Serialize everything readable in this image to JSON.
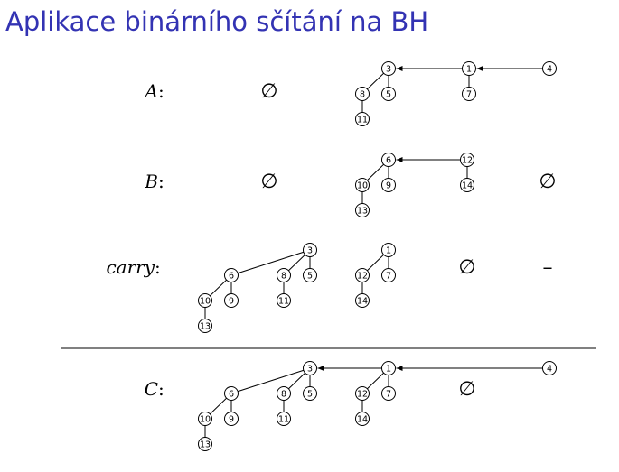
{
  "title": "Aplikace binárního sčítání na BH",
  "empty_symbol": "∅",
  "dash_symbol": "–",
  "rows": [
    {
      "label": "A",
      "colon": ":",
      "cells": [
        {
          "type": "empty"
        },
        {
          "type": "tree",
          "root": {
            "key": "3",
            "children": [
              {
                "key": "8",
                "children": [
                  {
                    "key": "11",
                    "children": []
                  }
                ]
              },
              {
                "key": "5",
                "children": []
              }
            ]
          }
        },
        {
          "type": "tree",
          "root": {
            "key": "1",
            "children": [
              {
                "key": "7",
                "children": []
              }
            ]
          }
        },
        {
          "type": "tree",
          "root": {
            "key": "4",
            "children": []
          }
        }
      ]
    },
    {
      "label": "B",
      "colon": ":",
      "cells": [
        {
          "type": "empty"
        },
        {
          "type": "tree",
          "root": {
            "key": "6",
            "children": [
              {
                "key": "10",
                "children": [
                  {
                    "key": "13",
                    "children": []
                  }
                ]
              },
              {
                "key": "9",
                "children": []
              }
            ]
          }
        },
        {
          "type": "tree",
          "root": {
            "key": "12",
            "children": [
              {
                "key": "14",
                "children": []
              }
            ]
          }
        },
        {
          "type": "empty"
        }
      ]
    },
    {
      "label": "carry",
      "colon": ":",
      "cells": [
        {
          "type": "tree",
          "root": {
            "key": "3",
            "children": [
              {
                "key": "6",
                "children": [
                  {
                    "key": "10",
                    "children": [
                      {
                        "key": "13",
                        "children": []
                      }
                    ]
                  },
                  {
                    "key": "9",
                    "children": []
                  }
                ]
              },
              {
                "key": "8",
                "children": [
                  {
                    "key": "11",
                    "children": []
                  }
                ]
              },
              {
                "key": "5",
                "children": []
              }
            ]
          }
        },
        {
          "type": "tree",
          "root": {
            "key": "1",
            "children": [
              {
                "key": "12",
                "children": [
                  {
                    "key": "14",
                    "children": []
                  }
                ]
              },
              {
                "key": "7",
                "children": []
              }
            ]
          }
        },
        {
          "type": "empty"
        },
        {
          "type": "dash"
        }
      ]
    },
    {
      "label": "C",
      "colon": ":",
      "cells": [
        {
          "type": "tree",
          "root": {
            "key": "3",
            "children": [
              {
                "key": "6",
                "children": [
                  {
                    "key": "10",
                    "children": [
                      {
                        "key": "13",
                        "children": []
                      }
                    ]
                  },
                  {
                    "key": "9",
                    "children": []
                  }
                ]
              },
              {
                "key": "8",
                "children": [
                  {
                    "key": "11",
                    "children": []
                  }
                ]
              },
              {
                "key": "5",
                "children": []
              }
            ]
          }
        },
        {
          "type": "tree",
          "root": {
            "key": "1",
            "children": [
              {
                "key": "12",
                "children": [
                  {
                    "key": "14",
                    "children": []
                  }
                ]
              },
              {
                "key": "7",
                "children": []
              }
            ]
          }
        },
        {
          "type": "empty"
        },
        {
          "type": "tree",
          "root": {
            "key": "4",
            "children": []
          }
        }
      ]
    }
  ]
}
